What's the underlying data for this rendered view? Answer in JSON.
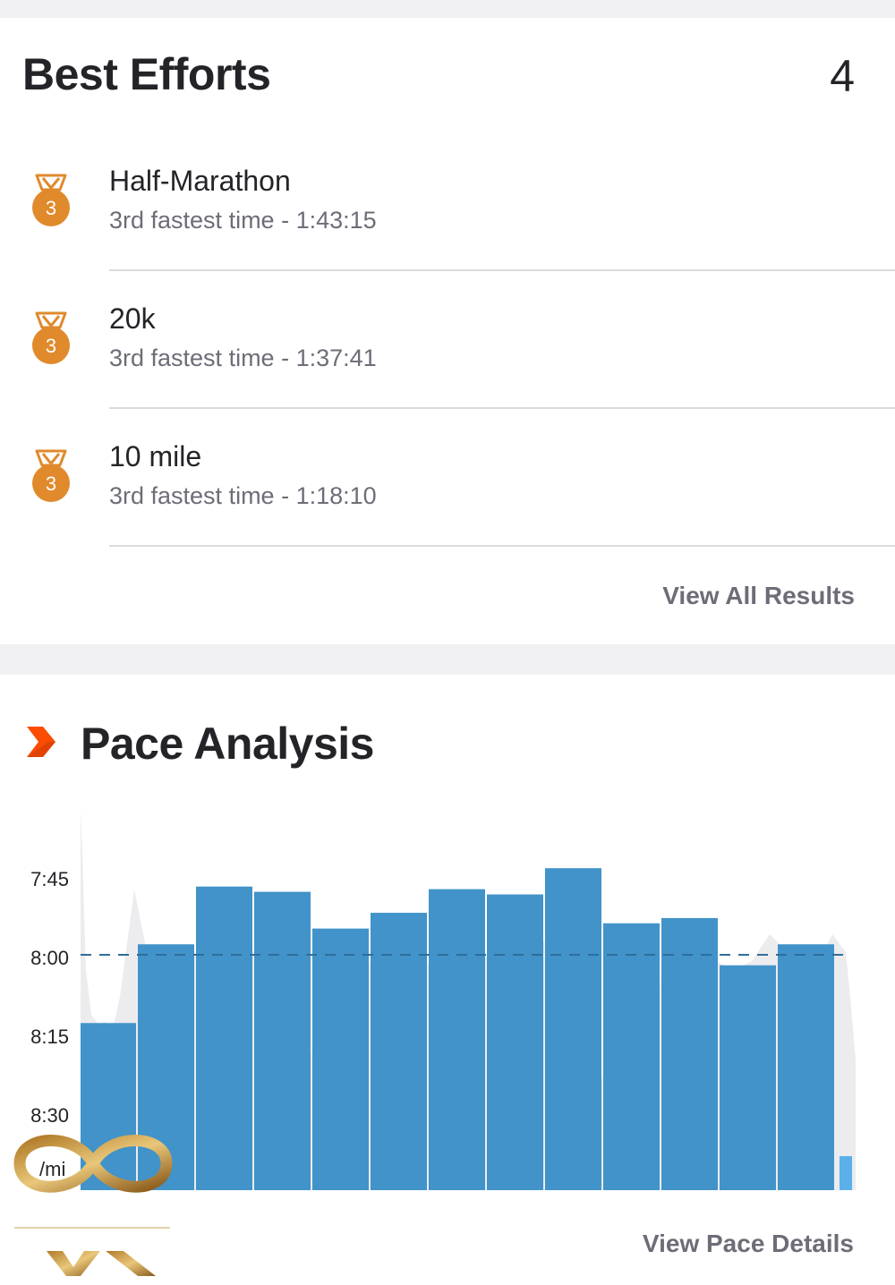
{
  "best_efforts": {
    "title": "Best Efforts",
    "count": "4",
    "items": [
      {
        "name": "Half-Marathon",
        "detail": "3rd fastest time - 1:43:15",
        "medal_rank": "3"
      },
      {
        "name": "20k",
        "detail": "3rd fastest time - 1:37:41",
        "medal_rank": "3"
      },
      {
        "name": "10 mile",
        "detail": "3rd fastest time - 1:18:10",
        "medal_rank": "3"
      }
    ],
    "view_all_label": "View All Results"
  },
  "pace_analysis": {
    "title": "Pace Analysis",
    "title_icon": "chevron-right-icon",
    "view_details_label": "View Pace Details"
  },
  "colors": {
    "medal": "#e08a2c",
    "accent": "#fc4c02",
    "bar": "#3b8fc7",
    "last_bar": "#5ab0e8",
    "shade": "#ececef",
    "avg_line": "#2e6e99"
  },
  "chart_data": {
    "type": "bar",
    "y_unit": "/mi",
    "y_tick_labels": [
      "7:45",
      "8:00",
      "8:15",
      "8:30"
    ],
    "y_ticks_seconds": [
      465,
      480,
      495,
      510
    ],
    "y_min_seconds": 518,
    "y_max_seconds": 455,
    "average_pace_seconds": 480,
    "series": [
      {
        "values_seconds": [
          493,
          478,
          467,
          468,
          475,
          472,
          467.5,
          468.5,
          463.5,
          474,
          473,
          482,
          478,
          518
        ]
      }
    ],
    "legend": "none",
    "grid": false
  }
}
